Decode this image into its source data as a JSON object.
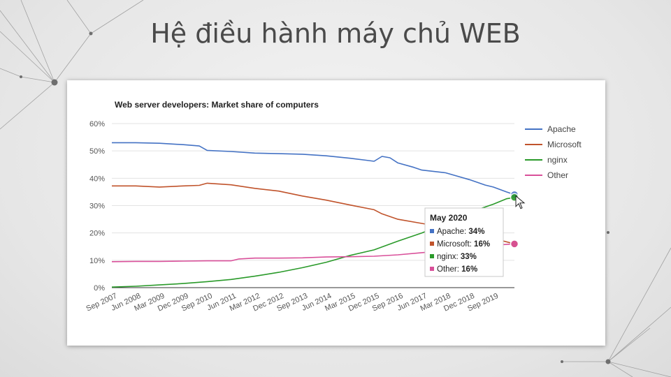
{
  "slide": {
    "title": "Hệ điều hành máy chủ WEB"
  },
  "colors": {
    "apache": "#4472c4",
    "microsoft": "#c0532b",
    "nginx": "#2a9a2a",
    "other": "#d9509a"
  },
  "chart_data": {
    "type": "line",
    "title": "Web server developers: Market share of computers",
    "xlabel": "",
    "ylabel": "",
    "ylim": [
      0,
      60
    ],
    "yticks": [
      0,
      10,
      20,
      30,
      40,
      50,
      60
    ],
    "yticklabels": [
      "0%",
      "10%",
      "20%",
      "30%",
      "40%",
      "50%",
      "60%"
    ],
    "xlim": [
      "2007-09",
      "2020-05"
    ],
    "xticks": [
      "2007-09",
      "2008-06",
      "2009-03",
      "2009-12",
      "2010-09",
      "2011-06",
      "2012-03",
      "2012-12",
      "2013-09",
      "2014-06",
      "2015-03",
      "2015-12",
      "2016-09",
      "2017-06",
      "2018-03",
      "2018-12",
      "2019-09"
    ],
    "xticklabels": [
      "Sep 2007",
      "Jun 2008",
      "Mar 2009",
      "Dec 2009",
      "Sep 2010",
      "Jun 2011",
      "Mar 2012",
      "Dec 2012",
      "Sep 2013",
      "Jun 2014",
      "Mar 2015",
      "Dec 2015",
      "Sep 2016",
      "Jun 2017",
      "Mar 2018",
      "Dec 2018",
      "Sep 2019"
    ],
    "grid": true,
    "legend_position": "right",
    "series": [
      {
        "name": "Apache",
        "key": "apache",
        "x": [
          "2007-09",
          "2008-06",
          "2009-03",
          "2009-12",
          "2010-06",
          "2010-09",
          "2011-06",
          "2012-03",
          "2012-12",
          "2013-09",
          "2014-06",
          "2015-03",
          "2015-09",
          "2015-12",
          "2016-03",
          "2016-06",
          "2016-09",
          "2017-03",
          "2017-06",
          "2018-03",
          "2018-12",
          "2019-06",
          "2019-09",
          "2020-02",
          "2020-05"
        ],
        "y": [
          53,
          53,
          52.8,
          52.3,
          51.8,
          50.2,
          49.8,
          49.2,
          49,
          48.8,
          48.2,
          47.3,
          46.6,
          46.2,
          48,
          47.5,
          45.6,
          44,
          43,
          42,
          39.5,
          37.5,
          36.8,
          35,
          34
        ]
      },
      {
        "name": "Microsoft",
        "key": "microsoft",
        "x": [
          "2007-09",
          "2008-06",
          "2009-03",
          "2009-12",
          "2010-06",
          "2010-09",
          "2011-06",
          "2012-03",
          "2012-12",
          "2013-09",
          "2014-06",
          "2015-03",
          "2015-12",
          "2016-03",
          "2016-09",
          "2017-06",
          "2018-03",
          "2018-12",
          "2019-09",
          "2020-05"
        ],
        "y": [
          37.2,
          37.2,
          36.8,
          37.2,
          37.4,
          38.2,
          37.6,
          36.3,
          35.3,
          33.5,
          32,
          30.2,
          28.5,
          27,
          25,
          23.5,
          22,
          20.5,
          18,
          16
        ]
      },
      {
        "name": "nginx",
        "key": "nginx",
        "x": [
          "2007-09",
          "2008-06",
          "2009-03",
          "2009-12",
          "2010-09",
          "2011-06",
          "2012-03",
          "2012-12",
          "2013-09",
          "2014-06",
          "2015-03",
          "2015-12",
          "2016-09",
          "2017-06",
          "2018-03",
          "2018-12",
          "2019-09",
          "2020-02",
          "2020-05"
        ],
        "y": [
          0.2,
          0.5,
          1,
          1.5,
          2.2,
          3,
          4.2,
          5.6,
          7.3,
          9.3,
          11.8,
          13.8,
          17,
          20,
          23.5,
          27.5,
          30.5,
          32.5,
          33
        ]
      },
      {
        "name": "Other",
        "key": "other",
        "x": [
          "2007-09",
          "2008-06",
          "2009-03",
          "2009-12",
          "2010-09",
          "2011-06",
          "2011-09",
          "2012-03",
          "2012-12",
          "2013-09",
          "2014-06",
          "2015-03",
          "2015-12",
          "2016-09",
          "2017-06",
          "2018-03",
          "2018-12",
          "2019-09",
          "2020-05"
        ],
        "y": [
          9.5,
          9.6,
          9.6,
          9.7,
          9.8,
          9.8,
          10.5,
          10.8,
          10.8,
          10.9,
          11.2,
          11.3,
          11.5,
          12,
          12.8,
          13.5,
          14.2,
          15.5,
          16
        ]
      }
    ],
    "tooltip": {
      "title": "May 2020",
      "rows": [
        {
          "key": "apache",
          "label": "Apache:",
          "value": "34%"
        },
        {
          "key": "microsoft",
          "label": "Microsoft:",
          "value": "16%"
        },
        {
          "key": "nginx",
          "label": "nginx:",
          "value": "33%"
        },
        {
          "key": "other",
          "label": "Other:",
          "value": "16%"
        }
      ]
    }
  }
}
